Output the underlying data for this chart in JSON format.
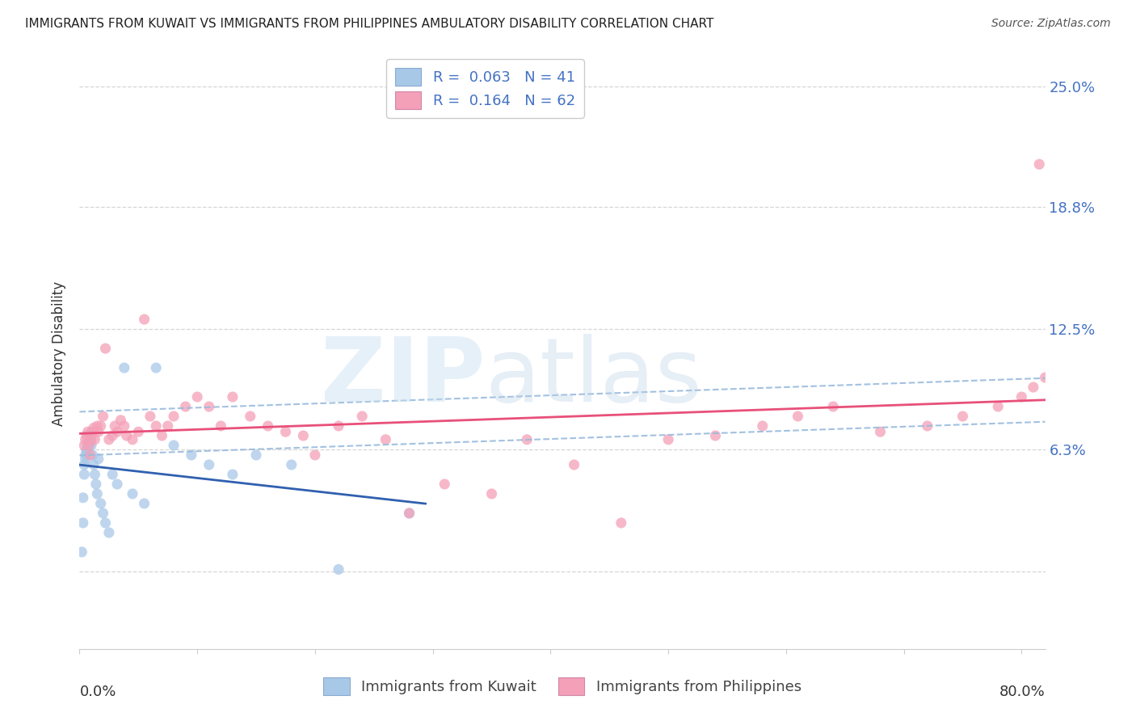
{
  "title": "IMMIGRANTS FROM KUWAIT VS IMMIGRANTS FROM PHILIPPINES AMBULATORY DISABILITY CORRELATION CHART",
  "source": "Source: ZipAtlas.com",
  "ylabel": "Ambulatory Disability",
  "ylim": [
    -0.04,
    0.265
  ],
  "xlim": [
    0.0,
    0.82
  ],
  "kuwait_R": 0.063,
  "kuwait_N": 41,
  "philippines_R": 0.164,
  "philippines_N": 62,
  "kuwait_color": "#a8c8e8",
  "kuwait_line_color": "#3060b0",
  "philippines_color": "#f4a0b8",
  "philippines_line_color": "#e8507a",
  "dash_color": "#99bbdd",
  "background_color": "#ffffff",
  "grid_color": "#cccccc",
  "ytick_positions": [
    0.0,
    0.063,
    0.125,
    0.188,
    0.25
  ],
  "ytick_labels": [
    "",
    "6.3%",
    "12.5%",
    "18.8%",
    "25.0%"
  ],
  "xtick_positions": [
    0.0,
    0.1,
    0.2,
    0.3,
    0.4,
    0.5,
    0.6,
    0.7,
    0.8
  ],
  "kuwait_x": [
    0.002,
    0.003,
    0.003,
    0.004,
    0.004,
    0.005,
    0.005,
    0.006,
    0.006,
    0.007,
    0.007,
    0.008,
    0.008,
    0.009,
    0.009,
    0.01,
    0.01,
    0.011,
    0.012,
    0.013,
    0.014,
    0.015,
    0.016,
    0.018,
    0.02,
    0.022,
    0.025,
    0.028,
    0.032,
    0.038,
    0.045,
    0.055,
    0.065,
    0.08,
    0.095,
    0.11,
    0.13,
    0.15,
    0.18,
    0.22,
    0.28
  ],
  "kuwait_y": [
    0.01,
    0.025,
    0.038,
    0.05,
    0.055,
    0.058,
    0.06,
    0.062,
    0.063,
    0.064,
    0.065,
    0.066,
    0.067,
    0.068,
    0.07,
    0.072,
    0.065,
    0.06,
    0.055,
    0.05,
    0.045,
    0.04,
    0.058,
    0.035,
    0.03,
    0.025,
    0.02,
    0.05,
    0.045,
    0.105,
    0.04,
    0.035,
    0.105,
    0.065,
    0.06,
    0.055,
    0.05,
    0.06,
    0.055,
    0.001,
    0.03
  ],
  "philippines_x": [
    0.004,
    0.005,
    0.006,
    0.007,
    0.008,
    0.009,
    0.01,
    0.011,
    0.012,
    0.013,
    0.015,
    0.016,
    0.018,
    0.02,
    0.022,
    0.025,
    0.028,
    0.03,
    0.032,
    0.035,
    0.038,
    0.04,
    0.045,
    0.05,
    0.055,
    0.06,
    0.065,
    0.07,
    0.075,
    0.08,
    0.09,
    0.1,
    0.11,
    0.12,
    0.13,
    0.145,
    0.16,
    0.175,
    0.19,
    0.2,
    0.22,
    0.24,
    0.26,
    0.28,
    0.31,
    0.35,
    0.38,
    0.42,
    0.46,
    0.5,
    0.54,
    0.58,
    0.61,
    0.64,
    0.68,
    0.72,
    0.75,
    0.78,
    0.8,
    0.81,
    0.815,
    0.82
  ],
  "philippines_y": [
    0.065,
    0.068,
    0.07,
    0.072,
    0.065,
    0.06,
    0.068,
    0.072,
    0.074,
    0.068,
    0.075,
    0.072,
    0.075,
    0.08,
    0.115,
    0.068,
    0.07,
    0.075,
    0.072,
    0.078,
    0.075,
    0.07,
    0.068,
    0.072,
    0.13,
    0.08,
    0.075,
    0.07,
    0.075,
    0.08,
    0.085,
    0.09,
    0.085,
    0.075,
    0.09,
    0.08,
    0.075,
    0.072,
    0.07,
    0.06,
    0.075,
    0.08,
    0.068,
    0.03,
    0.045,
    0.04,
    0.068,
    0.055,
    0.025,
    0.068,
    0.07,
    0.075,
    0.08,
    0.085,
    0.072,
    0.075,
    0.08,
    0.085,
    0.09,
    0.095,
    0.21,
    0.1
  ]
}
